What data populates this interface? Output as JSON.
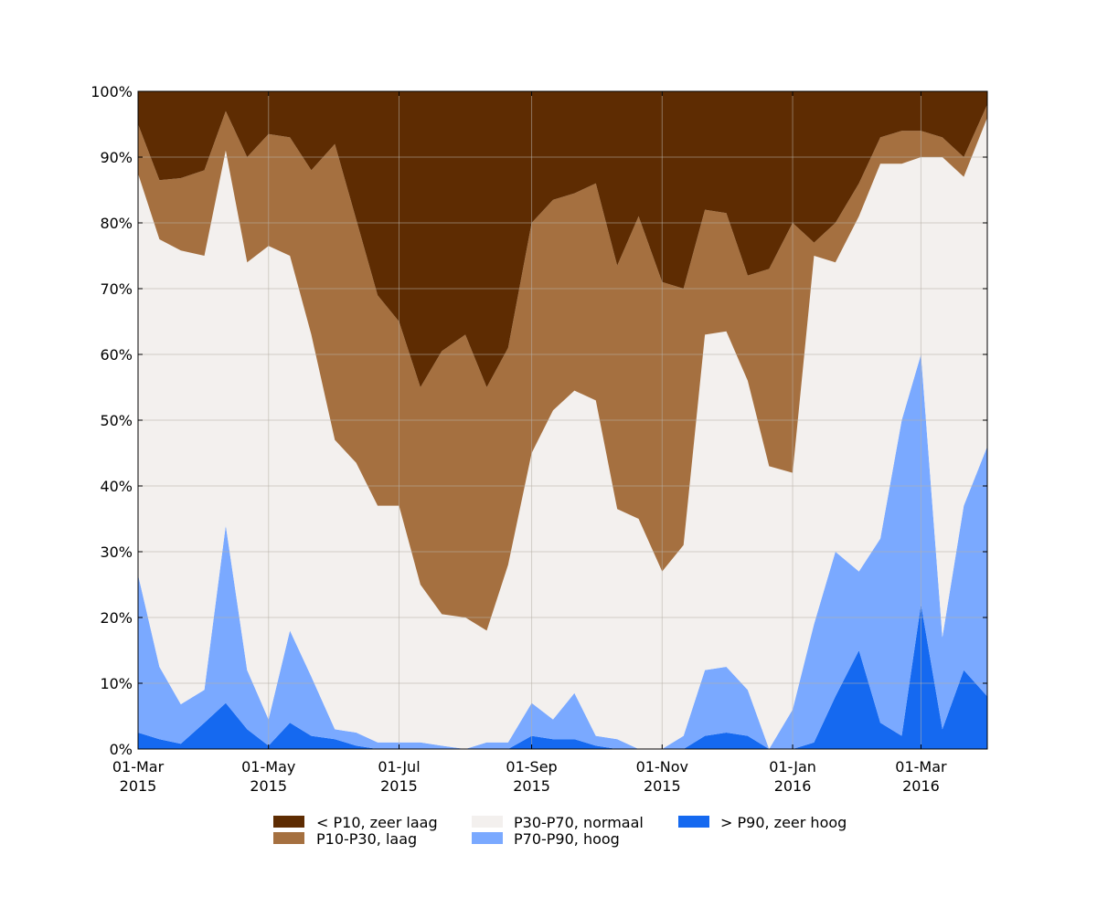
{
  "chart_data": {
    "type": "area",
    "stacked": true,
    "percent": true,
    "title": "",
    "xlabel": "",
    "ylabel": "",
    "ylim": [
      0,
      100
    ],
    "xlim": [
      "2015-03-01",
      "2016-04-01"
    ],
    "yticks": [
      "0%",
      "10%",
      "20%",
      "30%",
      "40%",
      "50%",
      "60%",
      "70%",
      "80%",
      "90%",
      "100%"
    ],
    "xticks": [
      {
        "date": "2015-03-01",
        "line1": "01-Mar",
        "line2": "2015"
      },
      {
        "date": "2015-05-01",
        "line1": "01-May",
        "line2": "2015"
      },
      {
        "date": "2015-07-01",
        "line1": "01-Jul",
        "line2": "2015"
      },
      {
        "date": "2015-09-01",
        "line1": "01-Sep",
        "line2": "2015"
      },
      {
        "date": "2015-11-01",
        "line1": "01-Nov",
        "line2": "2015"
      },
      {
        "date": "2016-01-01",
        "line1": "01-Jan",
        "line2": "2016"
      },
      {
        "date": "2016-03-01",
        "line1": "01-Mar",
        "line2": "2016"
      }
    ],
    "grid": true,
    "legend_position": "bottom",
    "dates": [
      "2015-03-01",
      "2015-03-11",
      "2015-03-21",
      "2015-04-01",
      "2015-04-11",
      "2015-04-21",
      "2015-05-01",
      "2015-05-11",
      "2015-05-21",
      "2015-06-01",
      "2015-06-11",
      "2015-06-21",
      "2015-07-01",
      "2015-07-11",
      "2015-07-21",
      "2015-08-01",
      "2015-08-11",
      "2015-08-21",
      "2015-09-01",
      "2015-09-11",
      "2015-09-21",
      "2015-10-01",
      "2015-10-11",
      "2015-10-21",
      "2015-11-01",
      "2015-11-11",
      "2015-11-21",
      "2015-12-01",
      "2015-12-11",
      "2015-12-21",
      "2016-01-01",
      "2016-01-11",
      "2016-01-21",
      "2016-02-01",
      "2016-02-11",
      "2016-02-21",
      "2016-03-01",
      "2016-03-11",
      "2016-03-21",
      "2016-03-31"
    ],
    "series": [
      {
        "name": "> P90, zeer hoog",
        "color": "#1569f0",
        "values": [
          2.5,
          1.5,
          0.8,
          4,
          7,
          3,
          0.5,
          4,
          2,
          1.5,
          0.5,
          0,
          0,
          0,
          0,
          0,
          0,
          0,
          2,
          1.5,
          1.5,
          0.5,
          0,
          0,
          0,
          0,
          2,
          2.5,
          2,
          0,
          0,
          1,
          8,
          15,
          4,
          2,
          22,
          3,
          12,
          8
        ]
      },
      {
        "name": "P70-P90, hoog",
        "color": "#7aa9ff",
        "values": [
          24,
          11,
          6,
          5,
          27,
          9,
          4,
          14,
          9,
          1.5,
          2,
          1,
          1,
          1,
          0.5,
          0,
          1,
          1,
          5,
          3,
          7,
          1.5,
          1.5,
          0,
          0,
          2,
          10,
          10,
          7,
          0,
          6,
          18,
          22,
          12,
          28,
          48,
          38,
          14,
          25,
          38
        ]
      },
      {
        "name": "P30-P70, normaal",
        "color": "#f3f0ee",
        "values": [
          61,
          65,
          69,
          66,
          57,
          62,
          72,
          57,
          52,
          44,
          41,
          36,
          36,
          24,
          20,
          20,
          17,
          27,
          38,
          47,
          46,
          51,
          35,
          35,
          27,
          29,
          51,
          51,
          47,
          43,
          36,
          56,
          44,
          54,
          57,
          39,
          30,
          73,
          50,
          50
        ]
      },
      {
        "name": "P10-P30, laag",
        "color": "#a57040",
        "values": [
          7.5,
          9,
          11,
          13,
          6,
          16,
          17,
          18,
          25,
          45,
          37,
          32,
          28,
          30,
          40,
          43,
          37,
          33,
          35,
          32,
          30,
          33,
          37,
          46,
          44,
          39,
          19,
          18,
          16,
          30,
          38,
          2,
          6,
          5,
          4,
          5,
          4,
          3,
          3,
          2
        ]
      },
      {
        "name": "< P10, zeer laag",
        "color": "#5e2c02",
        "values": [
          5,
          13.5,
          13.2,
          12,
          3,
          10,
          6.5,
          7,
          12,
          8,
          19.5,
          31,
          35,
          44,
          39.5,
          37,
          45,
          39,
          20,
          16.5,
          15.5,
          14,
          26.5,
          19,
          29,
          30,
          18,
          18.5,
          28,
          27,
          20,
          23,
          20,
          14,
          7,
          6,
          5,
          7,
          10,
          2
        ]
      }
    ]
  },
  "legend": {
    "items": [
      {
        "label": "< P10, zeer laag",
        "color": "#5e2c02"
      },
      {
        "label": "P10-P30, laag",
        "color": "#a57040"
      },
      {
        "label": "P30-P70, normaal",
        "color": "#f3f0ee"
      },
      {
        "label": "P70-P90, hoog",
        "color": "#7aa9ff"
      },
      {
        "label": "> P90, zeer hoog",
        "color": "#1569f0"
      }
    ]
  }
}
